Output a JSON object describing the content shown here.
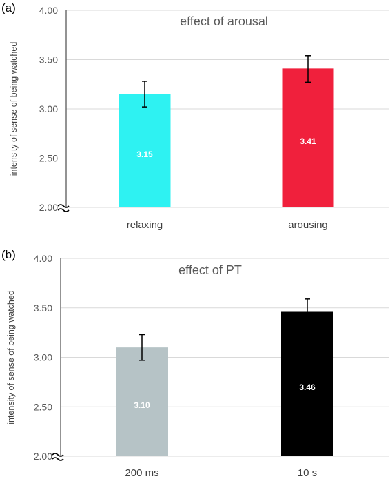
{
  "chart_data": [
    {
      "panel_label": "(a)",
      "type": "bar",
      "title": "effect of arousal",
      "ylabel": "intensity of sense of being watched",
      "xlabel": "",
      "ylim": [
        2.0,
        4.0
      ],
      "yticks": [
        "2.00",
        "2.50",
        "3.00",
        "3.50",
        "4.00"
      ],
      "categories": [
        "relaxing",
        "arousing"
      ],
      "values": [
        3.15,
        3.41
      ],
      "value_labels": [
        "3.15",
        "3.41"
      ],
      "error_low": [
        3.02,
        3.27
      ],
      "error_high": [
        3.28,
        3.54
      ],
      "colors": [
        "#2ef2f2",
        "#f0203c"
      ],
      "grid": true,
      "axis_break": true
    },
    {
      "panel_label": "(b)",
      "type": "bar",
      "title": "effect of PT",
      "ylabel": "intensity of sense of being watched",
      "xlabel": "",
      "ylim": [
        2.0,
        4.0
      ],
      "yticks": [
        "2.00",
        "2.50",
        "3.00",
        "3.50",
        "4.00"
      ],
      "categories": [
        "200 ms",
        "10 s"
      ],
      "values": [
        3.1,
        3.46
      ],
      "value_labels": [
        "3.10",
        "3.46"
      ],
      "error_low": [
        2.97,
        3.32
      ],
      "error_high": [
        3.23,
        3.59
      ],
      "colors": [
        "#b6c3c6",
        "#000000"
      ],
      "grid": true,
      "axis_break": true
    }
  ]
}
